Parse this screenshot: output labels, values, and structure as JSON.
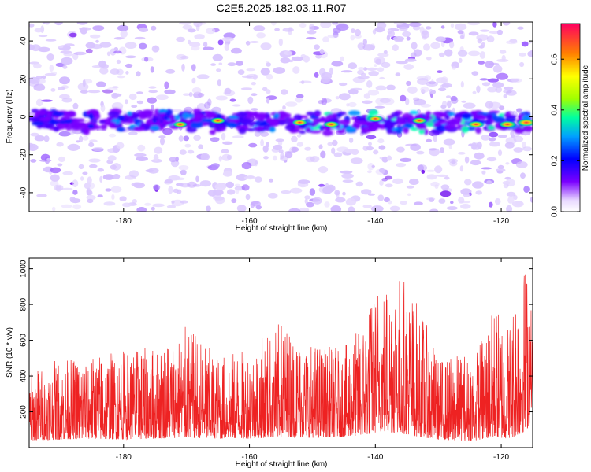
{
  "title": "C2E5.2025.182.03.11.R07",
  "chart_data": [
    {
      "type": "heatmap",
      "xlabel": "Height of straight line (km)",
      "ylabel": "Frequency (Hz)",
      "xlim": [
        -195,
        -115
      ],
      "ylim": [
        -50,
        50
      ],
      "xticks": [
        -180,
        -160,
        -140,
        -120
      ],
      "yticks": [
        40,
        20,
        0,
        -20,
        -40
      ],
      "colorbar": {
        "label": "Normalized spectral amplitude",
        "range": [
          0.0,
          0.74
        ],
        "ticks": [
          0.0,
          0.2,
          0.4,
          0.6
        ]
      },
      "band": {
        "center_freq_start": -2,
        "center_freq_end": -3,
        "halfwidth_hz": 6
      },
      "hotspots": [
        {
          "x": -171,
          "y": -4,
          "v": 0.42
        },
        {
          "x": -165,
          "y": -2,
          "v": 0.45
        },
        {
          "x": -152,
          "y": -3,
          "v": 0.47
        },
        {
          "x": -147,
          "y": -4,
          "v": 0.5
        },
        {
          "x": -140,
          "y": -1,
          "v": 0.48
        },
        {
          "x": -133,
          "y": -2,
          "v": 0.44
        },
        {
          "x": -124,
          "y": -4,
          "v": 0.55
        },
        {
          "x": -119,
          "y": -4,
          "v": 0.6
        },
        {
          "x": -116,
          "y": -3,
          "v": 0.72
        }
      ]
    },
    {
      "type": "line",
      "xlabel": "Height of straight line (km)",
      "ylabel": "SNR (10 * v/v)",
      "xlim": [
        -195,
        -115
      ],
      "ylim": [
        0,
        1060
      ],
      "xticks": [
        -180,
        -160,
        -140,
        -120
      ],
      "yticks": [
        200,
        400,
        600,
        800,
        1000
      ],
      "line_color": "#ee2222",
      "envelope": {
        "x": [
          -195,
          -190,
          -185,
          -180,
          -175,
          -170,
          -165,
          -160,
          -155,
          -150,
          -145,
          -142,
          -139,
          -136,
          -133,
          -130,
          -127,
          -124,
          -121,
          -119,
          -117,
          -115.5,
          -115
        ],
        "max": [
          430,
          500,
          520,
          550,
          560,
          680,
          520,
          560,
          710,
          580,
          560,
          700,
          1010,
          1000,
          800,
          500,
          520,
          550,
          800,
          700,
          1040,
          1050,
          600
        ],
        "min": [
          40,
          45,
          50,
          45,
          50,
          55,
          50,
          50,
          60,
          55,
          60,
          70,
          90,
          80,
          60,
          45,
          40,
          40,
          60,
          50,
          70,
          120,
          300
        ]
      }
    }
  ]
}
